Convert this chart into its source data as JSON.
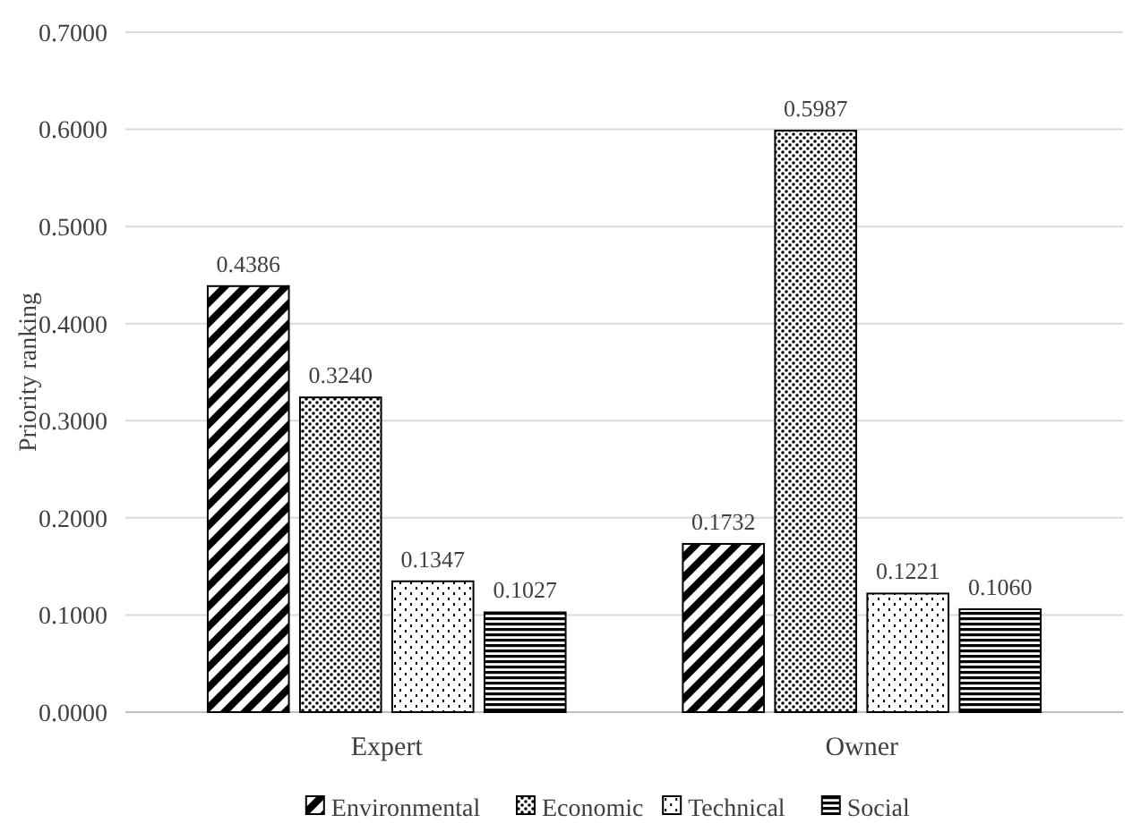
{
  "chart_data": {
    "type": "bar",
    "ylabel": "Priority ranking",
    "categories": [
      "Expert",
      "Owner"
    ],
    "series": [
      {
        "name": "Environmental",
        "color": "#000000",
        "values": [
          0.4386,
          0.1732
        ],
        "value_labels": [
          "0.4386",
          "0.1732"
        ]
      },
      {
        "name": "Economic",
        "color": "#000000",
        "values": [
          0.324,
          0.5987
        ],
        "value_labels": [
          "0.3240",
          "0.5987"
        ]
      },
      {
        "name": "Technical",
        "color": "#000000",
        "values": [
          0.1347,
          0.1221
        ],
        "value_labels": [
          "0.1347",
          "0.1221"
        ]
      },
      {
        "name": "Social",
        "color": "#000000",
        "values": [
          0.1027,
          0.106
        ],
        "value_labels": [
          "0.1027",
          "0.1060"
        ]
      }
    ],
    "ylim": [
      0,
      0.7
    ],
    "yticks": [
      {
        "value": 0,
        "label": "0.0000"
      },
      {
        "value": 0.1,
        "label": "0.1000"
      },
      {
        "value": 0.2,
        "label": "0.2000"
      },
      {
        "value": 0.3,
        "label": "0.3000"
      },
      {
        "value": 0.4,
        "label": "0.4000"
      },
      {
        "value": 0.5,
        "label": "0.5000"
      },
      {
        "value": 0.6,
        "label": "0.6000"
      },
      {
        "value": 0.7,
        "label": "0.7000"
      }
    ],
    "grid": "y",
    "legend": "bottom"
  }
}
